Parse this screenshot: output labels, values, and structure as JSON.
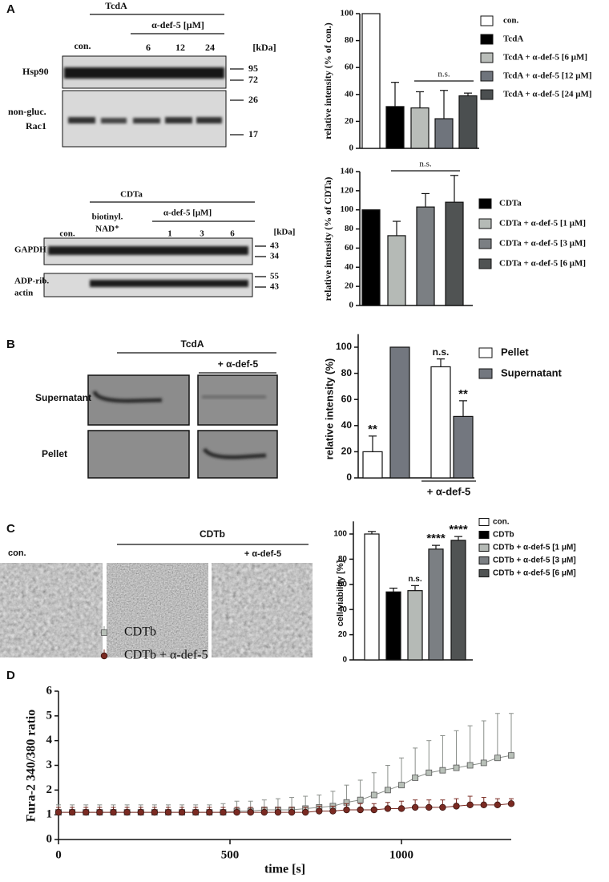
{
  "figure": {
    "panel_labels": [
      "A",
      "B",
      "C",
      "D"
    ],
    "blot_tcda": {
      "treatment": "TcdA",
      "inhibitor": "α-def-5 [μM]",
      "lanes": [
        "con.",
        6,
        12,
        24
      ],
      "unit": "[kDa]",
      "rows": [
        [
          "Hsp90"
        ],
        [
          "non-gluc.",
          "Rac1"
        ]
      ],
      "markers": [
        95,
        72,
        26,
        17
      ]
    },
    "blot_cdta": {
      "treatment": "CDTa",
      "inhibitor": "α-def-5 [μM]",
      "lanes": [
        "con.",
        [
          "biotinyl.",
          "NAD⁺"
        ],
        1,
        3,
        6
      ],
      "unit": "[kDa]",
      "rows": [
        [
          "GAPDH"
        ],
        [
          "ADP-rib.",
          "actin"
        ]
      ],
      "markers": [
        43,
        34,
        55,
        43
      ]
    },
    "blot_b": {
      "treatment": "TcdA",
      "inhibitor": "+ α-def-5",
      "rows": [
        "Supernatant",
        "Pellet"
      ]
    },
    "images_c": {
      "treatment": "CDTb",
      "labels": [
        "con.",
        "+ α-def-5"
      ]
    }
  },
  "chart_data": [
    {
      "type": "bar",
      "ylabel": "relative intensity (% of con.)",
      "ylim": [
        0,
        100
      ],
      "yticks": [
        0,
        20,
        40,
        60,
        80,
        100
      ],
      "annotation": "n.s.",
      "series": [
        {
          "name": "con.",
          "color": "#ffffff",
          "values": [
            100
          ],
          "errors": [
            null
          ]
        },
        {
          "name": "TcdA",
          "color": "#000000",
          "values": [
            31
          ],
          "errors": [
            18
          ]
        },
        {
          "name": "TcdA + α-def-5 [6 μM]",
          "color": "#b9bdb9",
          "values": [
            30
          ],
          "errors": [
            12
          ]
        },
        {
          "name": "TcdA + α-def-5 [12 μM]",
          "color": "#6f747c",
          "values": [
            22
          ],
          "errors": [
            21
          ]
        },
        {
          "name": "TcdA + α-def-5 [24 μM]",
          "color": "#4b4f50",
          "values": [
            39
          ],
          "errors": [
            2
          ]
        }
      ]
    },
    {
      "type": "bar",
      "ylabel": "relative intensity (% of CDTa)",
      "ylim": [
        0,
        140
      ],
      "yticks": [
        0,
        20,
        40,
        60,
        80,
        100,
        120,
        140
      ],
      "annotation": "n.s.",
      "series": [
        {
          "name": "CDTa",
          "color": "#000000",
          "values": [
            100
          ],
          "errors": [
            null
          ]
        },
        {
          "name": "CDTa + α-def-5 [1 μM]",
          "color": "#b5bab6",
          "values": [
            73
          ],
          "errors": [
            15
          ]
        },
        {
          "name": "CDTa + α-def-5 [3 μM]",
          "color": "#7b7f83",
          "values": [
            103
          ],
          "errors": [
            14
          ]
        },
        {
          "name": "CDTa + α-def-5 [6 μM]",
          "color": "#505353",
          "values": [
            108
          ],
          "errors": [
            28
          ]
        }
      ]
    },
    {
      "type": "bar",
      "ylabel": "relative intensity (%)",
      "ylim": [
        0,
        110
      ],
      "yticks": [
        0,
        20,
        40,
        60,
        80,
        100
      ],
      "categories": [
        null,
        "+ α-def-5"
      ],
      "series": [
        {
          "name": "Pellet",
          "color": "#ffffff",
          "values": [
            20,
            85
          ],
          "errors": [
            12,
            6
          ],
          "annotations": [
            "**",
            "n.s."
          ]
        },
        {
          "name": "Supernatant",
          "color": "#73777f",
          "values": [
            100,
            47
          ],
          "errors": [
            null,
            12
          ],
          "annotations": [
            null,
            "**"
          ]
        }
      ]
    },
    {
      "type": "bar",
      "ylabel": "cell viability [%]",
      "ylim": [
        0,
        110
      ],
      "yticks": [
        0,
        20,
        40,
        60,
        80,
        100
      ],
      "series": [
        {
          "name": "con.",
          "color": "#ffffff",
          "values": [
            100
          ],
          "errors": [
            2
          ],
          "annotations": [
            null
          ]
        },
        {
          "name": "CDTb",
          "color": "#000000",
          "values": [
            54
          ],
          "errors": [
            3
          ],
          "annotations": [
            null
          ]
        },
        {
          "name": "CDTb + α-def-5 [1 μM]",
          "color": "#b5bab6",
          "values": [
            55
          ],
          "errors": [
            4
          ],
          "annotations": [
            "n.s."
          ]
        },
        {
          "name": "CDTb + α-def-5 [3 μM]",
          "color": "#7b7f83",
          "values": [
            88
          ],
          "errors": [
            3
          ],
          "annotations": [
            "****"
          ]
        },
        {
          "name": "CDTb + α-def-5 [6 μM]",
          "color": "#505353",
          "values": [
            95
          ],
          "errors": [
            3
          ],
          "annotations": [
            "****"
          ]
        }
      ]
    },
    {
      "type": "line",
      "xlabel": "time [s]",
      "ylabel": "Fura-2 340/380 ratio",
      "xlim": [
        0,
        1320
      ],
      "xticks": [
        0,
        500,
        1000
      ],
      "ylim": [
        0,
        6
      ],
      "yticks": [
        0,
        1,
        2,
        3,
        4,
        5,
        6
      ],
      "x": [
        0,
        40,
        80,
        120,
        160,
        200,
        240,
        280,
        320,
        360,
        400,
        440,
        480,
        520,
        560,
        600,
        640,
        680,
        720,
        760,
        800,
        840,
        880,
        920,
        960,
        1000,
        1040,
        1080,
        1120,
        1160,
        1200,
        1240,
        1280,
        1320
      ],
      "series": [
        {
          "name": "CDTb",
          "color": "#b8c0b8",
          "marker": "square",
          "values": [
            1.1,
            1.1,
            1.1,
            1.1,
            1.1,
            1.1,
            1.1,
            1.1,
            1.1,
            1.1,
            1.1,
            1.1,
            1.1,
            1.15,
            1.15,
            1.2,
            1.2,
            1.2,
            1.25,
            1.3,
            1.35,
            1.5,
            1.6,
            1.8,
            2.0,
            2.2,
            2.5,
            2.7,
            2.8,
            2.9,
            3.0,
            3.1,
            3.3,
            3.4
          ],
          "errors": [
            0.3,
            0.3,
            0.3,
            0.3,
            0.3,
            0.3,
            0.3,
            0.3,
            0.3,
            0.3,
            0.3,
            0.3,
            0.35,
            0.4,
            0.4,
            0.4,
            0.45,
            0.5,
            0.5,
            0.5,
            0.6,
            0.7,
            0.8,
            0.9,
            1.0,
            1.1,
            1.2,
            1.3,
            1.4,
            1.5,
            1.6,
            1.7,
            1.8,
            1.7
          ]
        },
        {
          "name": "CDTb + α-def-5",
          "color": "#7a2a22",
          "marker": "circle",
          "values": [
            1.1,
            1.1,
            1.1,
            1.1,
            1.1,
            1.1,
            1.1,
            1.1,
            1.1,
            1.1,
            1.1,
            1.1,
            1.1,
            1.1,
            1.1,
            1.1,
            1.1,
            1.1,
            1.1,
            1.15,
            1.15,
            1.2,
            1.2,
            1.2,
            1.25,
            1.25,
            1.3,
            1.3,
            1.3,
            1.35,
            1.4,
            1.4,
            1.4,
            1.45
          ],
          "errors": [
            0.2,
            0.2,
            0.2,
            0.2,
            0.2,
            0.2,
            0.2,
            0.2,
            0.2,
            0.2,
            0.2,
            0.2,
            0.2,
            0.2,
            0.2,
            0.2,
            0.2,
            0.2,
            0.2,
            0.2,
            0.2,
            0.25,
            0.25,
            0.25,
            0.25,
            0.3,
            0.3,
            0.3,
            0.3,
            0.3,
            0.35,
            0.3,
            0.25,
            0.2
          ]
        }
      ]
    }
  ]
}
